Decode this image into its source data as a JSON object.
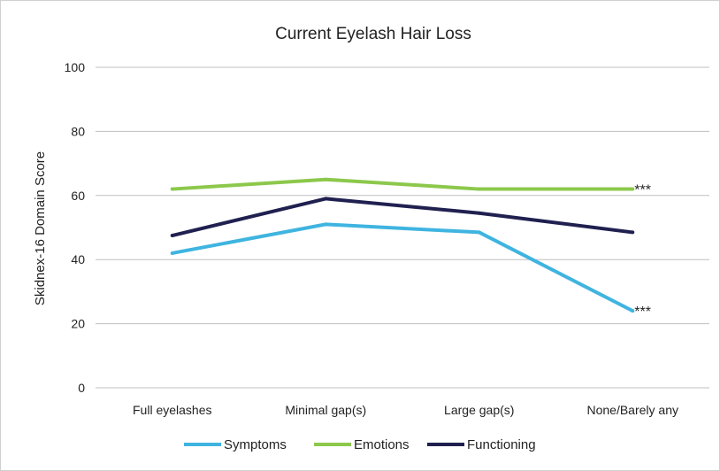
{
  "chart_data": {
    "type": "line",
    "title": "Current Eyelash Hair Loss",
    "xlabel": "",
    "ylabel": "Skidnex-16 Domain Score",
    "ylim": [
      0,
      100
    ],
    "yticks": [
      "0",
      "20",
      "40",
      "60",
      "80",
      "100"
    ],
    "categories": [
      "Full eyelashes",
      "Minimal gap(s)",
      "Large gap(s)",
      "None/Barely any"
    ],
    "grid": true,
    "legend_position": "bottom",
    "series": [
      {
        "name": "Symptoms",
        "color": "#3fb4e0",
        "values": [
          42,
          51,
          48.5,
          24
        ]
      },
      {
        "name": "Emotions",
        "color": "#8cc84b",
        "values": [
          62,
          65,
          62,
          62
        ]
      },
      {
        "name": "Functioning",
        "color": "#202050",
        "values": [
          47.5,
          59,
          54.5,
          48.5
        ]
      }
    ],
    "annotations": [
      {
        "text": "***",
        "series": "Emotions",
        "category_index": 3
      },
      {
        "text": "***",
        "series": "Symptoms",
        "category_index": 3
      }
    ]
  }
}
